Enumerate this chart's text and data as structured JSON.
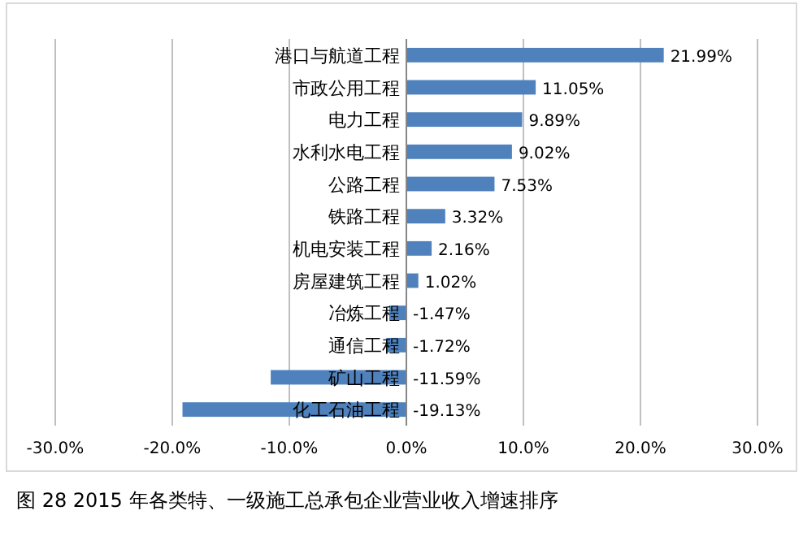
{
  "chart_data": {
    "type": "bar",
    "orientation": "horizontal",
    "title": "图 28 2015 年各类特、一级施工总承包企业营业收入增速排序",
    "categories": [
      "港口与航道工程",
      "市政公用工程",
      "电力工程",
      "水利水电工程",
      "公路工程",
      "铁路工程",
      "机电安装工程",
      "房屋建筑工程",
      "冶炼工程",
      "通信工程",
      "矿山工程",
      "化工石油工程"
    ],
    "values": [
      21.99,
      11.05,
      9.89,
      9.02,
      7.53,
      3.32,
      2.16,
      1.02,
      -1.47,
      -1.72,
      -11.59,
      -19.13
    ],
    "value_labels": [
      "21.99%",
      "11.05%",
      "9.89%",
      "9.02%",
      "7.53%",
      "3.32%",
      "2.16%",
      "1.02%",
      "-1.47%",
      "-1.72%",
      "-11.59%",
      "-19.13%"
    ],
    "color": "#4f81bd",
    "xlim": [
      -30,
      30
    ],
    "xticks": [
      {
        "value": -30,
        "label": "-30.0%"
      },
      {
        "value": -20,
        "label": "-20.0%"
      },
      {
        "value": -10,
        "label": "-10.0%"
      },
      {
        "value": 0,
        "label": "0.0%"
      },
      {
        "value": 10,
        "label": "10.0%"
      },
      {
        "value": 20,
        "label": "20.0%"
      },
      {
        "value": 30,
        "label": "30.0%"
      }
    ],
    "grid": "x"
  }
}
